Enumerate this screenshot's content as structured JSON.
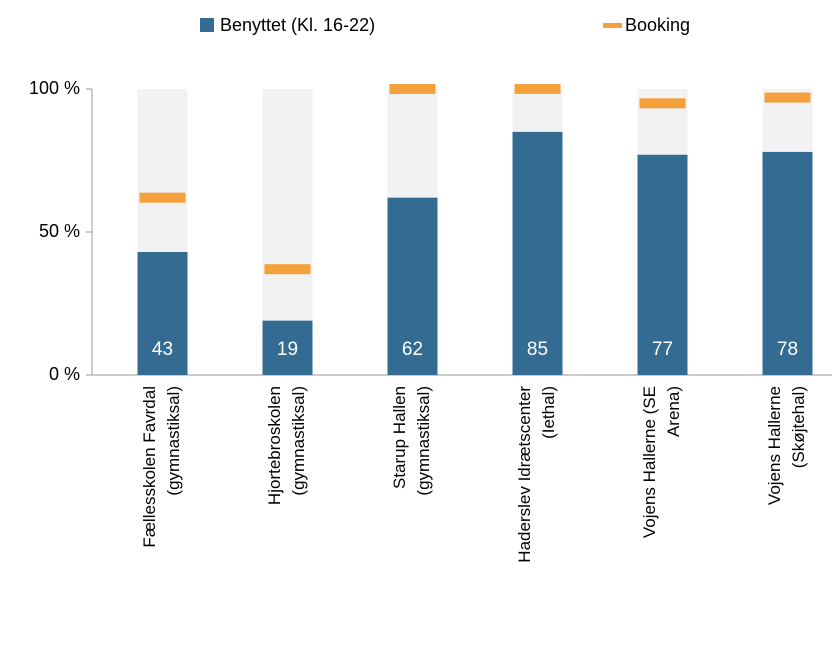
{
  "chart_data": {
    "type": "bar",
    "categories": [
      [
        "Fællesskolen Favrdal",
        "(gymnastiksal)"
      ],
      [
        "Hjortebroskolen",
        "(gymnastiksal)"
      ],
      [
        "Starup Hallen",
        "(gymnastiksal)"
      ],
      [
        "Haderslev Idrætscenter",
        "(Iethal)"
      ],
      [
        "Vojens Hallerne (SE",
        "Arena)"
      ],
      [
        "Vojens Hallerne",
        "(Skøjtehal)"
      ]
    ],
    "series": [
      {
        "name": "Benyttet (Kl. 16-22)",
        "color": "#336b93",
        "values": [
          43,
          19,
          62,
          85,
          77,
          78
        ]
      },
      {
        "name": "Booking",
        "color": "#f4a03b",
        "values": [
          62,
          37,
          100,
          100,
          95,
          97
        ]
      }
    ],
    "background_color": "#f2f2f2",
    "ylim": [
      0,
      100
    ],
    "yticks": [
      {
        "value": 0,
        "label": "0 %"
      },
      {
        "value": 50,
        "label": "50 %"
      },
      {
        "value": 100,
        "label": "100 %"
      }
    ],
    "legend": "top"
  }
}
